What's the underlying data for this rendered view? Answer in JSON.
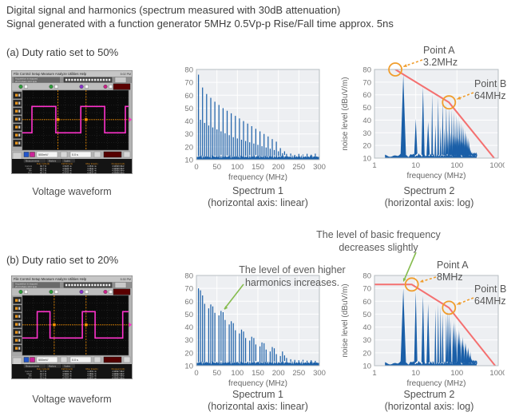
{
  "header": {
    "line1": "Digital signal and harmonics (spectrum measured with 30dB attenuation)",
    "line2": "Signal generated with a function generator 5MHz 0.5Vp-p Rise/Fall time approx. 5ns"
  },
  "sections": {
    "a": {
      "label": "(a) Duty ratio set to 50%"
    },
    "b": {
      "label": "(b) Duty ratio set to 20%"
    }
  },
  "captions": {
    "waveform": "Voltage waveform",
    "s1": "Spectrum 1",
    "s1sub": "(horizontal axis: linear)",
    "s2": "Spectrum 2",
    "s2sub": "(horizontal axis: log)"
  },
  "annotations": {
    "harmonics": {
      "line1": "The level of even higher",
      "line2": "harmonics increases."
    },
    "basic": {
      "line1": "The level of basic frequency",
      "line2": "decreases slightly"
    }
  },
  "colors": {
    "bar_blue": "#1a5fa8",
    "envelope_red": "#f47070",
    "marker_orange": "#f09d2c",
    "annotation_green": "#86bc4e",
    "plot_bg": "#edeff2",
    "grid": "#ffffff",
    "plot_border": "#b6bcc2",
    "tick_text": "#777777",
    "axis_text": "#666666",
    "trace_magenta": "#ff33cc",
    "scope_orange": "#ff9500"
  },
  "chart_data": [
    {
      "id": "spectrum1-a",
      "type": "bar",
      "xscale": "linear",
      "xlabel": "frequency (MHz)",
      "ylabel": "noise level (dBuV/m)",
      "xlim": [
        0,
        300
      ],
      "ylim": [
        10,
        80
      ],
      "xticks": [
        0,
        50,
        100,
        150,
        200,
        250,
        300
      ],
      "yticks": [
        10,
        20,
        30,
        40,
        50,
        60,
        70,
        80
      ],
      "peaks": "duty50",
      "noise_floor_db": 12.3
    },
    {
      "id": "spectrum2-a",
      "type": "bar",
      "xscale": "log",
      "xlabel": "frequency (MHz)",
      "ylabel": "noise level (dBuV/m)",
      "xlim": [
        1,
        1000
      ],
      "ylim": [
        10,
        80
      ],
      "xticks": [
        1,
        10,
        100,
        1000
      ],
      "yticks": [
        10,
        20,
        30,
        40,
        50,
        60,
        70,
        80
      ],
      "peaks": "duty50",
      "noise_floor_db": 12.3,
      "envelope": [
        [
          3.2,
          80
        ],
        [
          64,
          54
        ],
        [
          1000,
          6
        ]
      ],
      "points": [
        {
          "label": "Point A",
          "value": "3.2MHz",
          "f": 3.2,
          "level": 80
        },
        {
          "label": "Point B",
          "value": "64MHz",
          "f": 64,
          "level": 54
        }
      ]
    },
    {
      "id": "spectrum1-b",
      "type": "bar",
      "xscale": "linear",
      "xlabel": "frequency (MHz)",
      "ylabel": "noise level (dBuV/m)",
      "xlim": [
        0,
        300
      ],
      "ylim": [
        10,
        80
      ],
      "xticks": [
        0,
        50,
        100,
        150,
        200,
        250,
        300
      ],
      "yticks": [
        10,
        20,
        30,
        40,
        50,
        60,
        70,
        80
      ],
      "peaks": "duty20",
      "noise_floor_db": 12.3
    },
    {
      "id": "spectrum2-b",
      "type": "bar",
      "xscale": "log",
      "xlabel": "frequency (MHz)",
      "ylabel": "noise level (dBuV/m)",
      "xlim": [
        1,
        1000
      ],
      "ylim": [
        10,
        80
      ],
      "xticks": [
        1,
        10,
        100,
        1000
      ],
      "yticks": [
        10,
        20,
        30,
        40,
        50,
        60,
        70,
        80
      ],
      "peaks": "duty20",
      "noise_floor_db": 12.3,
      "envelope": [
        [
          1,
          73
        ],
        [
          8,
          73
        ],
        [
          64,
          55
        ],
        [
          1000,
          7
        ]
      ],
      "points": [
        {
          "label": "Point A",
          "value": "8MHz",
          "f": 8,
          "level": 73
        },
        {
          "label": "Point B",
          "value": "64MHz",
          "f": 64,
          "level": 55
        }
      ]
    }
  ],
  "peak_tables": {
    "duty50": [
      [
        5,
        76
      ],
      [
        10,
        41
      ],
      [
        15,
        66
      ],
      [
        20,
        38.5
      ],
      [
        25,
        61
      ],
      [
        30,
        36.5
      ],
      [
        35,
        58
      ],
      [
        40,
        35
      ],
      [
        45,
        55
      ],
      [
        50,
        33.5
      ],
      [
        55,
        52.5
      ],
      [
        60,
        32
      ],
      [
        65,
        50
      ],
      [
        70,
        30.5
      ],
      [
        75,
        48
      ],
      [
        80,
        29
      ],
      [
        85,
        46
      ],
      [
        90,
        27.5
      ],
      [
        95,
        44
      ],
      [
        100,
        26.5
      ],
      [
        105,
        42
      ],
      [
        110,
        25.5
      ],
      [
        115,
        40
      ],
      [
        120,
        24.5
      ],
      [
        125,
        38
      ],
      [
        130,
        23.5
      ],
      [
        135,
        36
      ],
      [
        140,
        22.5
      ],
      [
        145,
        34
      ],
      [
        150,
        21.5
      ],
      [
        155,
        32
      ],
      [
        160,
        20.5
      ],
      [
        165,
        30
      ],
      [
        170,
        19.5
      ],
      [
        175,
        28
      ],
      [
        180,
        18.5
      ],
      [
        185,
        26
      ],
      [
        190,
        17.5
      ],
      [
        195,
        24
      ],
      [
        200,
        16.5
      ],
      [
        205,
        19
      ],
      [
        210,
        15
      ],
      [
        215,
        16.5
      ],
      [
        220,
        14.5
      ],
      [
        230,
        14.8
      ],
      [
        240,
        13.8
      ],
      [
        250,
        14.5
      ],
      [
        260,
        14
      ],
      [
        270,
        14.6
      ],
      [
        280,
        13.9
      ],
      [
        290,
        14.7
      ],
      [
        300,
        14
      ]
    ],
    "duty20": [
      [
        5,
        70
      ],
      [
        10,
        68.5
      ],
      [
        15,
        64.5
      ],
      [
        20,
        58
      ],
      [
        25,
        13
      ],
      [
        30,
        54.5
      ],
      [
        35,
        57.5
      ],
      [
        40,
        56
      ],
      [
        45,
        51
      ],
      [
        50,
        13
      ],
      [
        55,
        49
      ],
      [
        60,
        52.5
      ],
      [
        65,
        51.5
      ],
      [
        70,
        45.5
      ],
      [
        75,
        13
      ],
      [
        80,
        42
      ],
      [
        85,
        44.5
      ],
      [
        90,
        43
      ],
      [
        95,
        37.5
      ],
      [
        100,
        13
      ],
      [
        105,
        35
      ],
      [
        110,
        38
      ],
      [
        115,
        36.5
      ],
      [
        120,
        31.5
      ],
      [
        125,
        13
      ],
      [
        130,
        29.5
      ],
      [
        135,
        32.5
      ],
      [
        140,
        31.5
      ],
      [
        145,
        26.5
      ],
      [
        150,
        13
      ],
      [
        155,
        25
      ],
      [
        160,
        28
      ],
      [
        165,
        27.5
      ],
      [
        170,
        22.5
      ],
      [
        175,
        13
      ],
      [
        180,
        21
      ],
      [
        185,
        24.5
      ],
      [
        190,
        23.5
      ],
      [
        195,
        19
      ],
      [
        200,
        13
      ],
      [
        205,
        17.5
      ],
      [
        210,
        21
      ],
      [
        215,
        18
      ],
      [
        220,
        16
      ],
      [
        230,
        15
      ],
      [
        240,
        14.5
      ],
      [
        250,
        14.2
      ],
      [
        260,
        14.6
      ],
      [
        270,
        13.9
      ],
      [
        280,
        14.3
      ],
      [
        290,
        13.8
      ],
      [
        300,
        14.1
      ]
    ]
  },
  "oscilloscope": {
    "menu": [
      "File",
      "Control",
      "Setup",
      "Measure",
      "Analyze",
      "Utilities",
      "Help"
    ],
    "status_line1": "Acquisition is stopped",
    "status_line2": "20.0 GSa/s  10.0 kpts",
    "tabs": [
      "Measurements",
      "Markers",
      "Scales"
    ],
    "table_headers": [
      "Duty cycle(1)",
      "Fall time(1)",
      "Rise time(1)",
      "Frequency(1)"
    ],
    "row_labels": [
      "Current",
      "Mean",
      "Min",
      "Max"
    ],
    "vscale_label": "500mV/",
    "hscale_label": "0.0 s",
    "scope_a": {
      "time": "5:02 PM",
      "duty": "49.7 %",
      "fall": "4.5325 ns",
      "rise": "4.4632 ns",
      "freq": "4.99996 MHz",
      "wave_high": [
        [
          0.09,
          0.315
        ],
        [
          0.55,
          0.775
        ],
        [
          0.97,
          1.0
        ]
      ],
      "markers": [
        0.335,
        0.6
      ]
    },
    "scope_b": {
      "time": "5:30 PM",
      "duty": "19.7 %",
      "fall": "4.5302 ns",
      "rise": "4.4651 ns",
      "freq": "4.99997 MHz",
      "wave_high": [
        [
          0.14,
          0.26
        ],
        [
          0.565,
          0.685
        ],
        [
          0.945,
          1.0
        ]
      ],
      "markers": [
        0.3,
        0.6
      ]
    }
  }
}
